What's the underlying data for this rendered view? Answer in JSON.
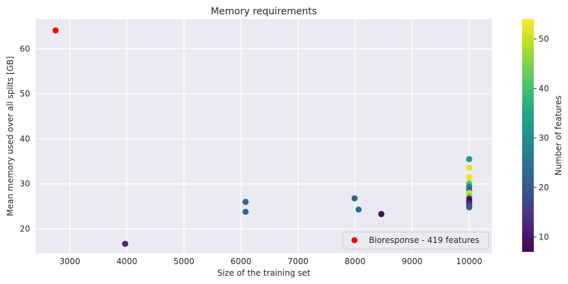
{
  "chart_data": {
    "type": "scatter",
    "title": "Memory requirements",
    "xlabel": "Size of the training set",
    "ylabel": "Mean memory used over all splits [GB]",
    "xlim": [
      2400,
      10400
    ],
    "ylim": [
      14.6,
      66.6
    ],
    "xticks": [
      3000,
      4000,
      5000,
      6000,
      7000,
      8000,
      9000,
      10000
    ],
    "yticks": [
      20,
      30,
      40,
      50,
      60
    ],
    "grid": true,
    "colorbar": {
      "label": "Number of features",
      "colormap": "viridis",
      "range": [
        7,
        54
      ],
      "ticks": [
        10,
        20,
        30,
        40,
        50
      ]
    },
    "series": [
      {
        "color_by": "Number of features",
        "points": [
          {
            "x": 3970,
            "y": 16.7,
            "c": 12
          },
          {
            "x": 6080,
            "y": 26.0,
            "c": 22
          },
          {
            "x": 6080,
            "y": 23.8,
            "c": 22
          },
          {
            "x": 7990,
            "y": 26.8,
            "c": 22
          },
          {
            "x": 8060,
            "y": 24.3,
            "c": 24
          },
          {
            "x": 8460,
            "y": 23.3,
            "c": 8
          },
          {
            "x": 10000,
            "y": 35.5,
            "c": 32
          },
          {
            "x": 10000,
            "y": 33.6,
            "c": 52
          },
          {
            "x": 10000,
            "y": 31.5,
            "c": 53
          },
          {
            "x": 10000,
            "y": 30.1,
            "c": 42
          },
          {
            "x": 10000,
            "y": 29.4,
            "c": 28
          },
          {
            "x": 10000,
            "y": 28.7,
            "c": 22
          },
          {
            "x": 10000,
            "y": 28.0,
            "c": 50
          },
          {
            "x": 10000,
            "y": 27.3,
            "c": 44
          },
          {
            "x": 10000,
            "y": 26.7,
            "c": 10
          },
          {
            "x": 10000,
            "y": 26.1,
            "c": 8
          },
          {
            "x": 10000,
            "y": 25.6,
            "c": 14
          },
          {
            "x": 10000,
            "y": 25.1,
            "c": 16
          },
          {
            "x": 10000,
            "y": 24.8,
            "c": 20
          }
        ]
      },
      {
        "name": "Bioresponse - 419 features",
        "color": "#ff0000",
        "points": [
          {
            "x": 2750,
            "y": 64.1
          }
        ]
      }
    ],
    "legend": {
      "placement": "lower-right"
    }
  }
}
